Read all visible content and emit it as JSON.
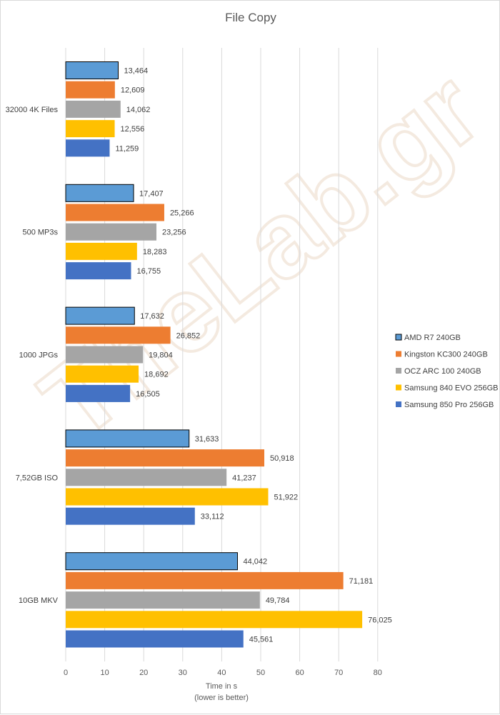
{
  "watermark": "TheLab.gr",
  "chart_data": {
    "type": "bar",
    "orientation": "horizontal",
    "title": "File Copy",
    "xlabel": "Time in s",
    "xlabel_note": "(lower is better)",
    "categories": [
      "32000 4K Files",
      "500 MP3s",
      "1000 JPGs",
      "7,52GB ISO",
      "10GB MKV"
    ],
    "series": [
      {
        "name": "AMD R7 240GB",
        "color": "#5b9bd5",
        "outlined": true,
        "values": [
          13.464,
          17.407,
          17.632,
          31.633,
          44.042
        ],
        "labels": [
          "13,464",
          "17,407",
          "17,632",
          "31,633",
          "44,042"
        ]
      },
      {
        "name": "Kingston KC300 240GB",
        "color": "#ed7d31",
        "outlined": false,
        "values": [
          12.609,
          25.266,
          26.852,
          50.918,
          71.181
        ],
        "labels": [
          "12,609",
          "25,266",
          "26,852",
          "50,918",
          "71,181"
        ]
      },
      {
        "name": "OCZ ARC 100 240GB",
        "color": "#a5a5a5",
        "outlined": false,
        "values": [
          14.062,
          23.256,
          19.804,
          41.237,
          49.784
        ],
        "labels": [
          "14,062",
          "23,256",
          "19,804",
          "41,237",
          "49,784"
        ]
      },
      {
        "name": "Samsung 840 EVO 256GB",
        "color": "#ffc000",
        "outlined": false,
        "values": [
          12.556,
          18.283,
          18.692,
          51.922,
          76.025
        ],
        "labels": [
          "12,556",
          "18,283",
          "18,692",
          "51,922",
          "76,025"
        ]
      },
      {
        "name": "Samsung 850 Pro 256GB",
        "color": "#4472c4",
        "outlined": false,
        "values": [
          11.259,
          16.755,
          16.505,
          33.112,
          45.561
        ],
        "labels": [
          "11,259",
          "16,755",
          "16,505",
          "33,112",
          "45,561"
        ]
      }
    ],
    "xlim": [
      0,
      80
    ],
    "xticks": [
      0,
      10,
      20,
      30,
      40,
      50,
      60,
      70,
      80
    ],
    "xtick_labels": [
      "0",
      "10",
      "20",
      "30",
      "40",
      "50",
      "60",
      "70",
      "80"
    ],
    "grid": true,
    "legend_position": "right"
  }
}
